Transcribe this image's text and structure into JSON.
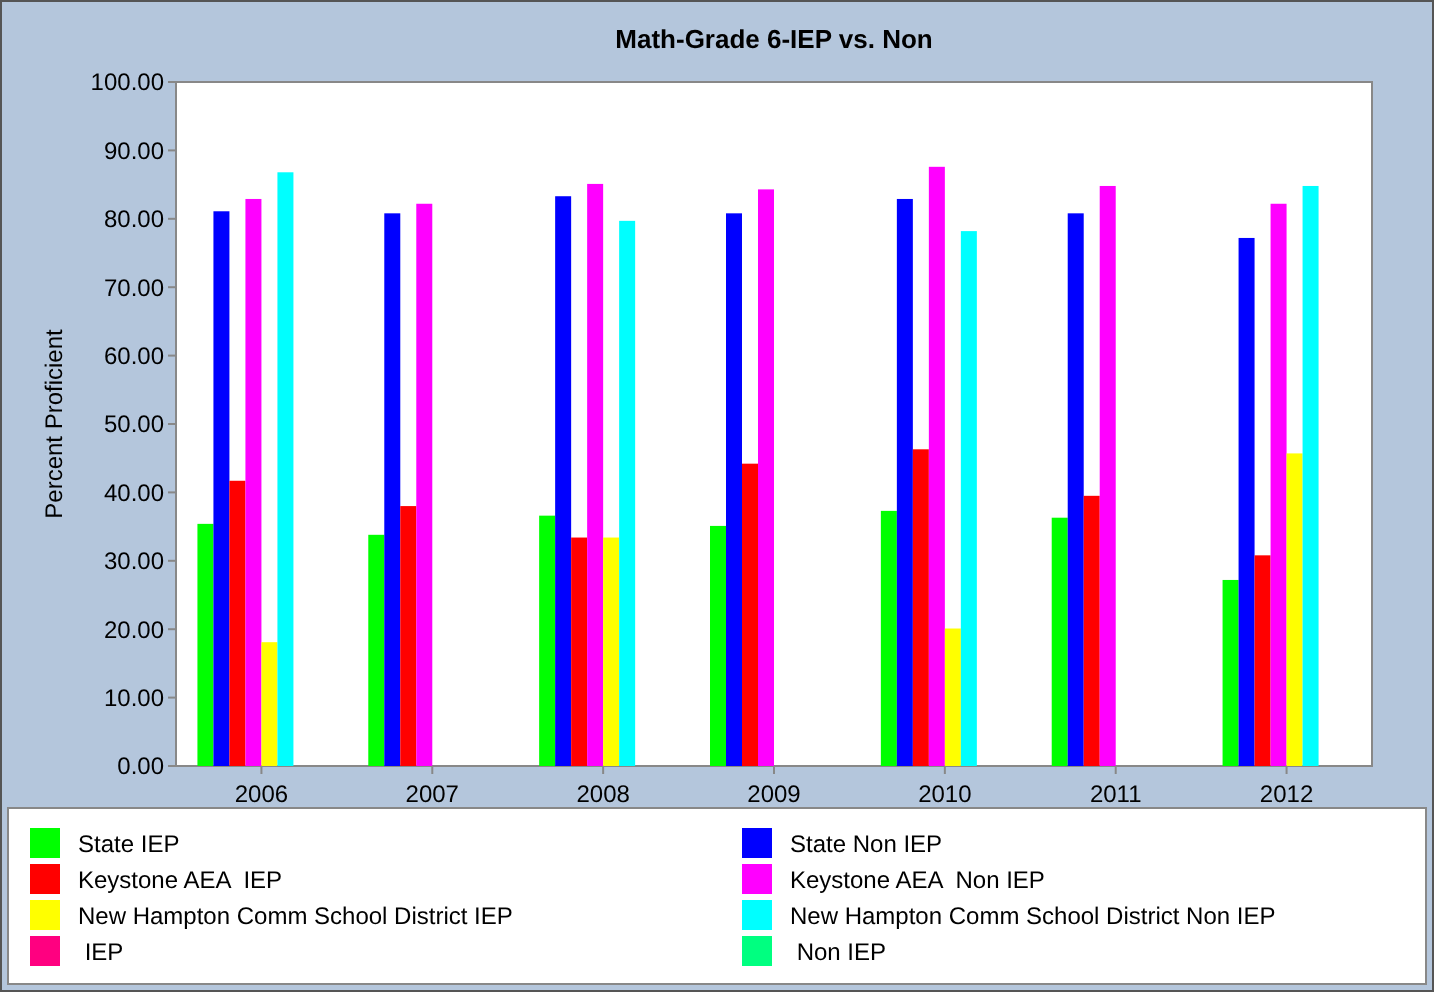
{
  "chart_data": {
    "type": "bar",
    "title": "Math-Grade 6-IEP vs. Non",
    "ylabel": "Percent Proficient",
    "categories": [
      "2006",
      "2007",
      "2008",
      "2009",
      "2010",
      "2011",
      "2012"
    ],
    "ylim": [
      0,
      100
    ],
    "yticks": [
      {
        "value": 0,
        "label": "0.00"
      },
      {
        "value": 10,
        "label": "10.00"
      },
      {
        "value": 20,
        "label": "20.00"
      },
      {
        "value": 30,
        "label": "30.00"
      },
      {
        "value": 40,
        "label": "40.00"
      },
      {
        "value": 50,
        "label": "50.00"
      },
      {
        "value": 60,
        "label": "60.00"
      },
      {
        "value": 70,
        "label": "70.00"
      },
      {
        "value": 80,
        "label": "80.00"
      },
      {
        "value": 90,
        "label": "90.00"
      },
      {
        "value": 100,
        "label": "100.00"
      }
    ],
    "grid": false,
    "legend": "bottom",
    "series": [
      {
        "name": "State IEP",
        "color": "#00ff00",
        "values": [
          35.4,
          33.8,
          36.6,
          35.1,
          37.3,
          36.3,
          27.2
        ]
      },
      {
        "name": "State Non IEP",
        "color": "#0000ff",
        "values": [
          81.1,
          80.8,
          83.3,
          80.8,
          82.9,
          80.8,
          77.2
        ]
      },
      {
        "name": "Keystone AEA  IEP",
        "color": "#ff0000",
        "values": [
          41.7,
          38.0,
          33.4,
          44.2,
          46.3,
          39.5,
          30.8
        ]
      },
      {
        "name": "Keystone AEA  Non IEP",
        "color": "#ff00ff",
        "values": [
          82.9,
          82.2,
          85.1,
          84.3,
          87.6,
          84.8,
          82.2
        ]
      },
      {
        "name": "New Hampton Comm School District IEP",
        "color": "#ffff00",
        "values": [
          18.1,
          null,
          33.4,
          null,
          20.1,
          null,
          45.7
        ]
      },
      {
        "name": "New Hampton Comm School District Non IEP",
        "color": "#00ffff",
        "values": [
          86.8,
          null,
          79.7,
          null,
          78.2,
          null,
          84.8
        ]
      },
      {
        "name": " IEP",
        "color": "#ff0080",
        "values": [
          null,
          null,
          null,
          null,
          null,
          null,
          null
        ]
      },
      {
        "name": " Non IEP",
        "color": "#00ff80",
        "values": [
          null,
          null,
          null,
          null,
          null,
          null,
          null
        ]
      }
    ]
  }
}
